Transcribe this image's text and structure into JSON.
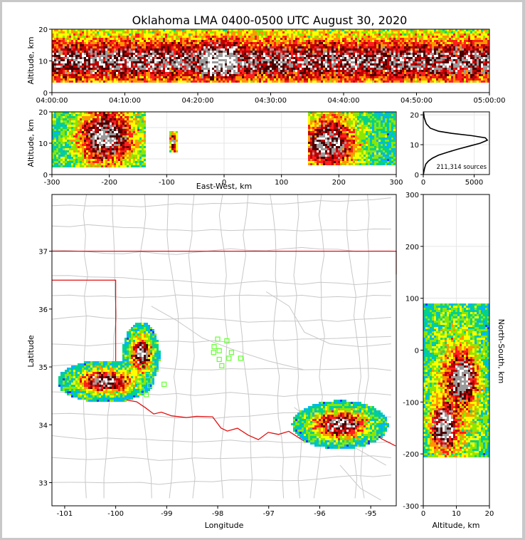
{
  "title": "Oklahoma LMA 0400-0500 UTC August 30, 2020",
  "colors": {
    "state_border": "#e01010",
    "county_lines": "#c8c8c8",
    "network_stations": "#66ff33",
    "hist_line": "#000000",
    "density_scale": [
      "#5a14c8",
      "#1e3cff",
      "#00b4ff",
      "#00d28c",
      "#8ce600",
      "#ffff00",
      "#ff9600",
      "#ff1e1e",
      "#be0000",
      "#4a0000",
      "#9a9a9a",
      "#ffffff"
    ]
  },
  "chart_data": [
    {
      "type": "heatmap",
      "name": "altitude-time",
      "ylabel": "Altitude, km",
      "yticks": [
        "0",
        "10",
        "20"
      ],
      "ylim": [
        0,
        20
      ],
      "xticks": [
        "04:00:00",
        "04:10:00",
        "04:20:00",
        "04:30:00",
        "04:40:00",
        "04:50:00",
        "05:00:00"
      ],
      "xlim": [
        "04:00:00",
        "05:00:00"
      ],
      "band_km": [
        3,
        20
      ],
      "core_km": [
        6,
        14
      ],
      "peak_interval": [
        "04:20:30",
        "04:25:30"
      ]
    },
    {
      "type": "heatmap",
      "name": "east-west-altitude",
      "xlabel": "East-West, km",
      "ylabel": "Altitude, km",
      "xlim": [
        -300,
        300
      ],
      "ylim": [
        0,
        20
      ],
      "xticks": [
        "-300",
        "-200",
        "-100",
        "0",
        "100",
        "200",
        "300"
      ],
      "yticks": [
        "0",
        "10",
        "20"
      ],
      "clusters": [
        {
          "x_range": [
            -300,
            -135
          ],
          "z_range": [
            2,
            20
          ],
          "peak_x": -205,
          "peak_z": 12
        },
        {
          "x_range": [
            -97,
            -80
          ],
          "z_range": [
            7,
            14
          ],
          "peak_x": -88,
          "peak_z": 10
        },
        {
          "x_range": [
            148,
            300
          ],
          "z_range": [
            3,
            20
          ],
          "peak_x": 182,
          "peak_z": 10
        }
      ]
    },
    {
      "type": "line",
      "name": "altitude-histogram",
      "annotation": "211,314 sources",
      "xlim": [
        0,
        6500
      ],
      "ylim": [
        0,
        21
      ],
      "xticks": [
        "0",
        "5000"
      ],
      "yticks": [
        "0",
        "10",
        "20"
      ],
      "points": [
        [
          10,
          0
        ],
        [
          120,
          2
        ],
        [
          250,
          3.5
        ],
        [
          500,
          4.5
        ],
        [
          900,
          5.5
        ],
        [
          1500,
          6.5
        ],
        [
          2400,
          7.5
        ],
        [
          3400,
          8.5
        ],
        [
          4500,
          9.5
        ],
        [
          5600,
          10.5
        ],
        [
          6300,
          11.5
        ],
        [
          6100,
          12.3
        ],
        [
          4800,
          13
        ],
        [
          2800,
          13.8
        ],
        [
          1500,
          14.5
        ],
        [
          700,
          15.5
        ],
        [
          300,
          17
        ],
        [
          100,
          19
        ],
        [
          20,
          21
        ]
      ]
    },
    {
      "type": "heatmap",
      "name": "plan-view-map",
      "xlabel": "Longitude",
      "ylabel": "Latitude",
      "xlim": [
        -101.25,
        -94.5
      ],
      "ylim": [
        32.6,
        37.98
      ],
      "xticks": [
        "-101",
        "-100",
        "-99",
        "-98",
        "-97",
        "-96",
        "-95"
      ],
      "yticks": [
        "33",
        "34",
        "35",
        "36",
        "37"
      ],
      "storm_clusters": [
        {
          "lon": -100.2,
          "lat": 34.75,
          "lon_spread": 0.9,
          "lat_spread": 0.35
        },
        {
          "lon": -99.5,
          "lat": 35.2,
          "lon_spread": 0.35,
          "lat_spread": 0.55
        },
        {
          "lon": -95.6,
          "lat": 34.0,
          "lon_spread": 0.9,
          "lat_spread": 0.4
        }
      ],
      "stations": [
        [
          -98.0,
          35.48
        ],
        [
          -97.82,
          35.45
        ],
        [
          -98.07,
          35.35
        ],
        [
          -97.97,
          35.28
        ],
        [
          -98.08,
          35.25
        ],
        [
          -97.73,
          35.25
        ],
        [
          -97.78,
          35.15
        ],
        [
          -97.55,
          35.15
        ],
        [
          -97.97,
          35.13
        ],
        [
          -97.92,
          35.02
        ],
        [
          -99.45,
          35.0
        ],
        [
          -99.38,
          34.85
        ],
        [
          -99.55,
          34.75
        ],
        [
          -99.33,
          34.68
        ],
        [
          -99.05,
          34.7
        ],
        [
          -99.48,
          34.58
        ],
        [
          -99.4,
          34.52
        ]
      ]
    },
    {
      "type": "heatmap",
      "name": "north-south-altitude",
      "xlabel": "Altitude, km",
      "ylabel": "North-South, km",
      "xlim": [
        0,
        20
      ],
      "ylim": [
        -300,
        300
      ],
      "xticks": [
        "0",
        "10",
        "20"
      ],
      "yticks": [
        "-300",
        "-200",
        "-100",
        "0",
        "100",
        "200",
        "300"
      ],
      "y_range": [
        -205,
        90
      ],
      "peaks": [
        {
          "z": 12,
          "y": -55
        },
        {
          "z": 6,
          "y": -150
        }
      ]
    }
  ]
}
